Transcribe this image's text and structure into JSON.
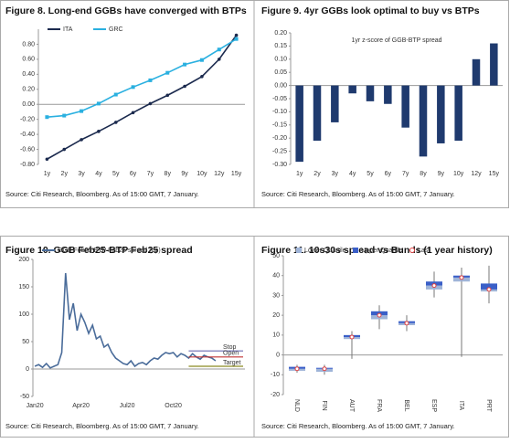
{
  "chart_data": [
    {
      "type": "line",
      "title": "Figure 8. Long-end GGBs have converged with BTPs",
      "source": "Source: Citi Research, Bloomberg. As of 15:00 GMT, 7 January.",
      "categories": [
        "1y",
        "2y",
        "3y",
        "4y",
        "5y",
        "6y",
        "7y",
        "8y",
        "9y",
        "10y",
        "12y",
        "15y"
      ],
      "series": [
        {
          "name": "ITA",
          "color": "#1b2a4e",
          "values": [
            -0.73,
            -0.6,
            -0.47,
            -0.36,
            -0.24,
            -0.11,
            0.01,
            0.12,
            0.24,
            0.37,
            0.6,
            0.92
          ]
        },
        {
          "name": "GRC",
          "color": "#2ab0e0",
          "values": [
            -0.17,
            -0.15,
            -0.09,
            0.01,
            0.13,
            0.23,
            0.32,
            0.42,
            0.53,
            0.59,
            0.73,
            0.87
          ]
        }
      ],
      "markers": true,
      "ylim": [
        -0.8,
        1.0
      ],
      "yticks": [
        {
          "value": -0.8,
          "label": "-0.80"
        },
        {
          "value": -0.6,
          "label": "-0.60"
        },
        {
          "value": -0.4,
          "label": "-0.40"
        },
        {
          "value": -0.2,
          "label": "-0.20"
        },
        {
          "value": 0,
          "label": "0.00"
        },
        {
          "value": 0.2,
          "label": "0.20"
        },
        {
          "value": 0.4,
          "label": "0.40"
        },
        {
          "value": 0.6,
          "label": "0.60"
        },
        {
          "value": 0.8,
          "label": "0.80"
        }
      ]
    },
    {
      "type": "bar",
      "title": "Figure 9. 4yr GGBs look optimal to buy vs BTPs",
      "subtitle": "1yr z-score of GGB-BTP spread",
      "source": "Source: Citi Research, Bloomberg. As of 15:00 GMT, 7 January.",
      "categories": [
        "1y",
        "2y",
        "3y",
        "4y",
        "5y",
        "6y",
        "7y",
        "8y",
        "9y",
        "10y",
        "12y",
        "15y"
      ],
      "values": [
        -0.29,
        -0.21,
        -0.14,
        -0.03,
        -0.06,
        -0.07,
        -0.16,
        -0.27,
        -0.22,
        -0.21,
        0.1,
        0.16
      ],
      "color": "#1f3a6e",
      "ylim": [
        -0.3,
        0.2
      ],
      "yticks": [
        {
          "value": -0.3,
          "label": "-0.30"
        },
        {
          "value": -0.25,
          "label": "-0.25"
        },
        {
          "value": -0.2,
          "label": "-0.20"
        },
        {
          "value": -0.15,
          "label": "-0.15"
        },
        {
          "value": -0.1,
          "label": "-0.10"
        },
        {
          "value": -0.05,
          "label": "-0.05"
        },
        {
          "value": 0,
          "label": "0.00"
        },
        {
          "value": 0.05,
          "label": "0.05"
        },
        {
          "value": 0.1,
          "label": "0.10"
        },
        {
          "value": 0.15,
          "label": "0.15"
        },
        {
          "value": 0.2,
          "label": "0.20"
        }
      ]
    },
    {
      "type": "line",
      "title": "Figure 10. GGB Feb25-BTP Feb25 spread",
      "source": "Source: Citi Research, Bloomberg. As of 15:00 GMT, 7 January.",
      "categories": [
        "Jan20",
        null,
        null,
        null,
        null,
        null,
        null,
        null,
        null,
        null,
        null,
        null,
        "Apr20",
        null,
        null,
        null,
        null,
        null,
        null,
        null,
        null,
        null,
        null,
        null,
        "Jul20",
        null,
        null,
        null,
        null,
        null,
        null,
        null,
        null,
        null,
        null,
        null,
        "Oct20",
        null,
        null,
        null,
        null,
        null,
        null,
        null,
        null,
        null,
        null,
        null
      ],
      "series": [
        {
          "name": "GGB Feb25-BTP Feb25  spread (bp)",
          "color": "#4a6c9a",
          "values": [
            5,
            8,
            3,
            10,
            2,
            5,
            8,
            30,
            175,
            90,
            120,
            70,
            100,
            85,
            65,
            80,
            55,
            60,
            40,
            45,
            30,
            20,
            15,
            10,
            8,
            15,
            5,
            10,
            12,
            8,
            15,
            20,
            18,
            25,
            30,
            28,
            30,
            22,
            28,
            25,
            20,
            28,
            22,
            18,
            25,
            22,
            20,
            15
          ]
        }
      ],
      "levels": [
        {
          "label": "Stop",
          "value": 33,
          "color": "#6a6ab0"
        },
        {
          "label": "Open",
          "value": 22,
          "color": "#c03030"
        },
        {
          "label": "Target",
          "value": 5,
          "color": "#8a8a20"
        }
      ],
      "ylim": [
        -50,
        200
      ],
      "yticks": [
        -50,
        0,
        50,
        100,
        150,
        200
      ]
    },
    {
      "type": "box",
      "title": "Figure 11. 10s30s spread vs Bunds (1 year history)",
      "source": "Source: Citi Research, Bloomberg. As of 15:00 GMT, 7 January.",
      "categories": [
        "NLD",
        "FIN",
        "AUT",
        "FRA",
        "BEL",
        "ESP",
        "ITA",
        "PRT"
      ],
      "series": [
        {
          "name": "Lower Quartile",
          "color": "#9fb4d8",
          "values": [
            -8,
            -8.5,
            8,
            18,
            15,
            33,
            37,
            32
          ]
        },
        {
          "name": "Upper Quartile",
          "color": "#3a5fc8",
          "values": [
            -6,
            -6.5,
            10,
            22,
            17,
            37,
            40,
            36
          ]
        },
        {
          "name": "Last",
          "color": "#e04040",
          "values": [
            -7,
            -7,
            9,
            20,
            16,
            35,
            39,
            33
          ]
        }
      ],
      "min": [
        -9,
        -10,
        -2,
        13,
        12,
        29,
        -1,
        26
      ],
      "max": [
        -5,
        -5,
        12,
        25,
        20,
        42,
        44,
        45
      ],
      "ylim": [
        -20,
        50
      ],
      "yticks": [
        -20,
        -10,
        0,
        10,
        20,
        30,
        40,
        50
      ]
    }
  ]
}
